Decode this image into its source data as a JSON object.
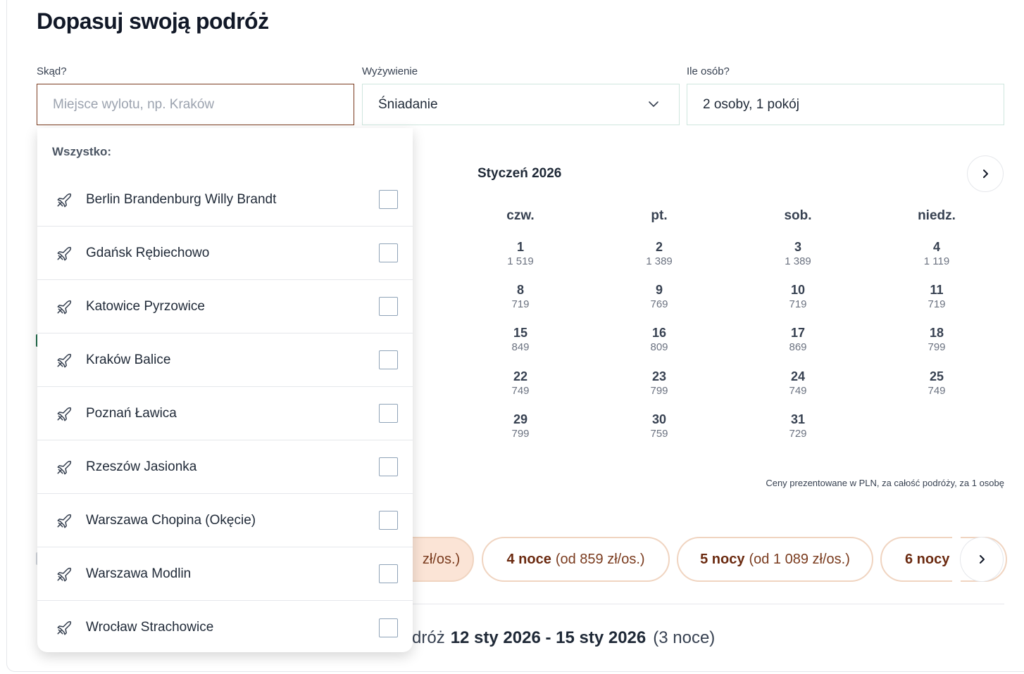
{
  "page": {
    "title": "Dopasuj swoją podróż"
  },
  "fields": {
    "from": {
      "label": "Skąd?",
      "placeholder": "Miejsce wylotu, np. Kraków",
      "value": ""
    },
    "board": {
      "label": "Wyżywienie",
      "value": "Śniadanie"
    },
    "people": {
      "label": "Ile osób?",
      "value": "2 osoby, 1 pokój"
    }
  },
  "dropdown": {
    "header": "Wszystko:",
    "items": [
      {
        "label": "Berlin Brandenburg Willy Brandt",
        "icon": "plane-icon",
        "checked": false
      },
      {
        "label": "Gdańsk Rębiechowo",
        "icon": "plane-icon",
        "checked": false
      },
      {
        "label": "Katowice Pyrzowice",
        "icon": "plane-icon",
        "checked": false
      },
      {
        "label": "Kraków Balice",
        "icon": "plane-icon",
        "checked": false
      },
      {
        "label": "Poznań Ławica",
        "icon": "plane-icon",
        "checked": false
      },
      {
        "label": "Rzeszów Jasionka",
        "icon": "plane-icon",
        "checked": false
      },
      {
        "label": "Warszawa Chopina (Okęcie)",
        "icon": "plane-icon",
        "checked": false
      },
      {
        "label": "Warszawa Modlin",
        "icon": "plane-icon",
        "checked": false
      },
      {
        "label": "Wrocław Strachowice",
        "icon": "plane-icon",
        "checked": false
      }
    ]
  },
  "calendar": {
    "month": "Styczeń 2026",
    "weekdays": [
      "czw.",
      "pt.",
      "sob.",
      "niedz."
    ],
    "rows": [
      [
        {
          "day": "1",
          "price": "1 519"
        },
        {
          "day": "2",
          "price": "1 389"
        },
        {
          "day": "3",
          "price": "1 389"
        },
        {
          "day": "4",
          "price": "1 119"
        }
      ],
      [
        {
          "day": "8",
          "price": "719"
        },
        {
          "day": "9",
          "price": "769"
        },
        {
          "day": "10",
          "price": "719"
        },
        {
          "day": "11",
          "price": "719"
        }
      ],
      [
        {
          "day": "15",
          "price": "849"
        },
        {
          "day": "16",
          "price": "809"
        },
        {
          "day": "17",
          "price": "869"
        },
        {
          "day": "18",
          "price": "799"
        }
      ],
      [
        {
          "day": "22",
          "price": "749"
        },
        {
          "day": "23",
          "price": "799"
        },
        {
          "day": "24",
          "price": "749"
        },
        {
          "day": "25",
          "price": "749"
        }
      ],
      [
        {
          "day": "29",
          "price": "799"
        },
        {
          "day": "30",
          "price": "759"
        },
        {
          "day": "31",
          "price": "729"
        }
      ]
    ],
    "price_note": "Ceny prezentowane w PLN, za całość podróży, za 1 osobę"
  },
  "nights": {
    "pills": [
      {
        "bold": "",
        "rest": "zł/os.)",
        "selected": true
      },
      {
        "bold": "4 noce",
        "rest": "(od 859 zł/os.)",
        "selected": false
      },
      {
        "bold": "5 nocy",
        "rest": "(od 1 089 zł/os.)",
        "selected": false
      },
      {
        "bold": "6 nocy",
        "rest": "",
        "selected": false
      }
    ]
  },
  "summary": {
    "prefix": "dróż",
    "dates": "12 sty 2026 - 15 sty 2026",
    "nights": "(3 noce)"
  },
  "colors": {
    "accent": "#7a3b1e",
    "pill_border": "#f0d4c0",
    "pill_selected_bg": "#fbe4d6",
    "field_border": "#cfe6de"
  }
}
